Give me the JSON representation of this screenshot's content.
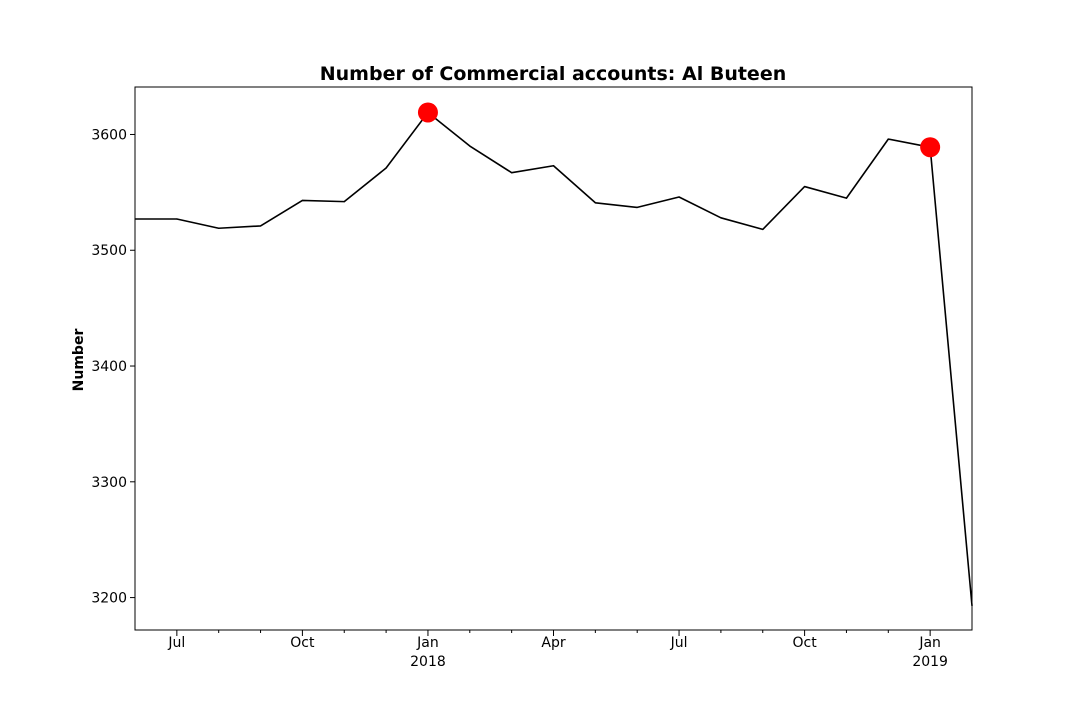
{
  "chart_data": {
    "type": "line",
    "title": "Number of Commercial accounts: Al Buteen",
    "xlabel": "",
    "ylabel": "Number",
    "x": [
      "2017-06",
      "2017-07",
      "2017-08",
      "2017-09",
      "2017-10",
      "2017-11",
      "2017-12",
      "2018-01",
      "2018-02",
      "2018-03",
      "2018-04",
      "2018-05",
      "2018-06",
      "2018-07",
      "2018-08",
      "2018-09",
      "2018-10",
      "2018-11",
      "2018-12",
      "2019-01",
      "2019-02"
    ],
    "series": [
      {
        "values": [
          3527,
          3527,
          3519,
          3521,
          3543,
          3542,
          3571,
          3619,
          3590,
          3567,
          3573,
          3541,
          3537,
          3546,
          3528,
          3518,
          3555,
          3545,
          3596,
          3589,
          3193
        ],
        "color": "#000000"
      }
    ],
    "highlights": [
      {
        "x": "2018-01",
        "y": 3619,
        "color": "#ff0000"
      },
      {
        "x": "2019-01",
        "y": 3589,
        "color": "#ff0000"
      }
    ],
    "ylim": [
      3172,
      3641
    ],
    "xlim": [
      "2017-06",
      "2019-02"
    ],
    "y_ticks": [
      {
        "value": 3200,
        "label": "3200"
      },
      {
        "value": 3300,
        "label": "3300"
      },
      {
        "value": 3400,
        "label": "3400"
      },
      {
        "value": 3500,
        "label": "3500"
      },
      {
        "value": 3600,
        "label": "3600"
      }
    ],
    "x_major_ticks": [
      {
        "x": "2017-07",
        "label": "Jul",
        "sublabel": ""
      },
      {
        "x": "2017-10",
        "label": "Oct",
        "sublabel": ""
      },
      {
        "x": "2018-01",
        "label": "Jan",
        "sublabel": "2018"
      },
      {
        "x": "2018-04",
        "label": "Apr",
        "sublabel": ""
      },
      {
        "x": "2018-07",
        "label": "Jul",
        "sublabel": ""
      },
      {
        "x": "2018-10",
        "label": "Oct",
        "sublabel": ""
      },
      {
        "x": "2019-01",
        "label": "Jan",
        "sublabel": "2019"
      }
    ],
    "x_minor_ticks": [
      "2017-08",
      "2017-09",
      "2017-11",
      "2017-12",
      "2018-02",
      "2018-03",
      "2018-05",
      "2018-06",
      "2018-08",
      "2018-09",
      "2018-11",
      "2018-12"
    ],
    "grid": false,
    "legend": "none"
  }
}
